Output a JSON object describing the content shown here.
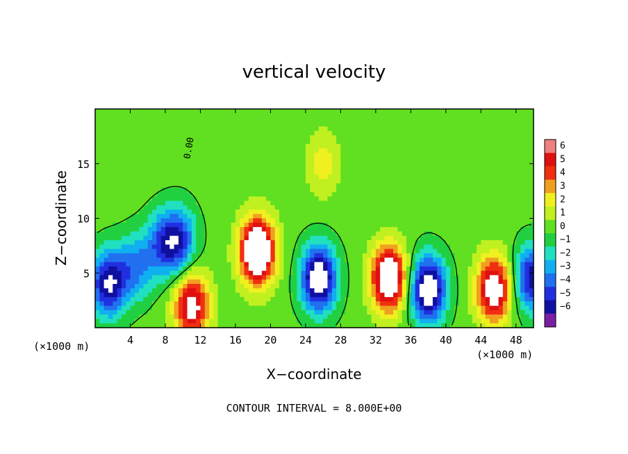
{
  "chart_data": {
    "type": "heatmap",
    "title": "vertical velocity",
    "xlabel": "X−coordinate",
    "ylabel": "Z−coordinate",
    "x_unit_left": "(×1000 m)",
    "x_unit_right": "(×1000 m)",
    "footer": "CONTOUR INTERVAL = 8.000E+00",
    "xlim": [
      0,
      50
    ],
    "ylim": [
      0,
      20
    ],
    "x_ticks": [
      4,
      8,
      12,
      16,
      20,
      24,
      28,
      32,
      36,
      40,
      44,
      48
    ],
    "y_ticks": [
      5,
      10,
      15
    ],
    "zero_contour_label": "0.00",
    "colorbar": {
      "levels": [
        -6,
        -5,
        -4,
        -3,
        -2,
        -1,
        0,
        1,
        2,
        3,
        4,
        5,
        6
      ],
      "labels": [
        "6",
        "5",
        "4",
        "3",
        "2",
        "1",
        "0",
        "−1",
        "−2",
        "−3",
        "−4",
        "−5",
        "−6"
      ],
      "colors": [
        "#7a1fa2",
        "#1010a0",
        "#2030e0",
        "#2070f0",
        "#10b0f0",
        "#20e0c0",
        "#20d040",
        "#60e020",
        "#c0f020",
        "#f0f020",
        "#f0a020",
        "#f03010",
        "#e01010",
        "#f08080"
      ]
    },
    "background_value": 0.4,
    "features": [
      {
        "x": 1.5,
        "z": 4.0,
        "w": -6.5
      },
      {
        "x": 4.5,
        "z": 5.5,
        "w": -3.5
      },
      {
        "x": 7.5,
        "z": 7.5,
        "w": -3.5
      },
      {
        "x": 9.5,
        "z": 8.0,
        "w": -5.0
      },
      {
        "x": 11.0,
        "z": 2.0,
        "w": 6.5
      },
      {
        "x": 18.5,
        "z": 7.0,
        "w": 9.0
      },
      {
        "x": 25.5,
        "z": 4.5,
        "w": -8.0
      },
      {
        "x": 33.5,
        "z": 4.5,
        "w": 8.0
      },
      {
        "x": 38.0,
        "z": 3.5,
        "w": -8.0
      },
      {
        "x": 45.5,
        "z": 3.5,
        "w": 7.0
      },
      {
        "x": 49.8,
        "z": 4.5,
        "w": -6.0
      },
      {
        "x": 26.0,
        "z": 15.0,
        "w": 2.0
      }
    ]
  }
}
